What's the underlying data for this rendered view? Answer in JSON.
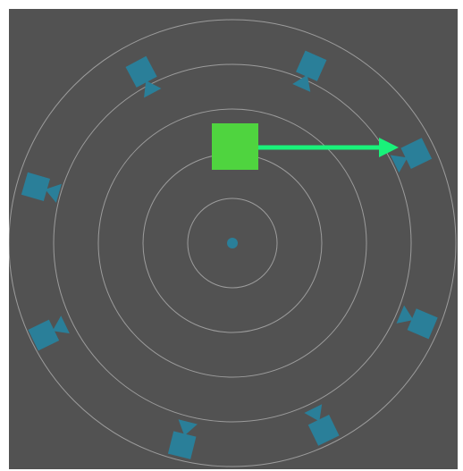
{
  "scene": {
    "background_color": "#525252",
    "ring_color": "#9c9c9c",
    "ring_count": 5,
    "center_dot_color": "#2a7f99"
  },
  "player": {
    "shape": "square",
    "color": "#4fd43f"
  },
  "aim_arrow": {
    "color": "#19f27a",
    "direction": "right"
  },
  "cameras": {
    "icon": "camera-icon",
    "color": "#2a7f99",
    "count": 8
  }
}
